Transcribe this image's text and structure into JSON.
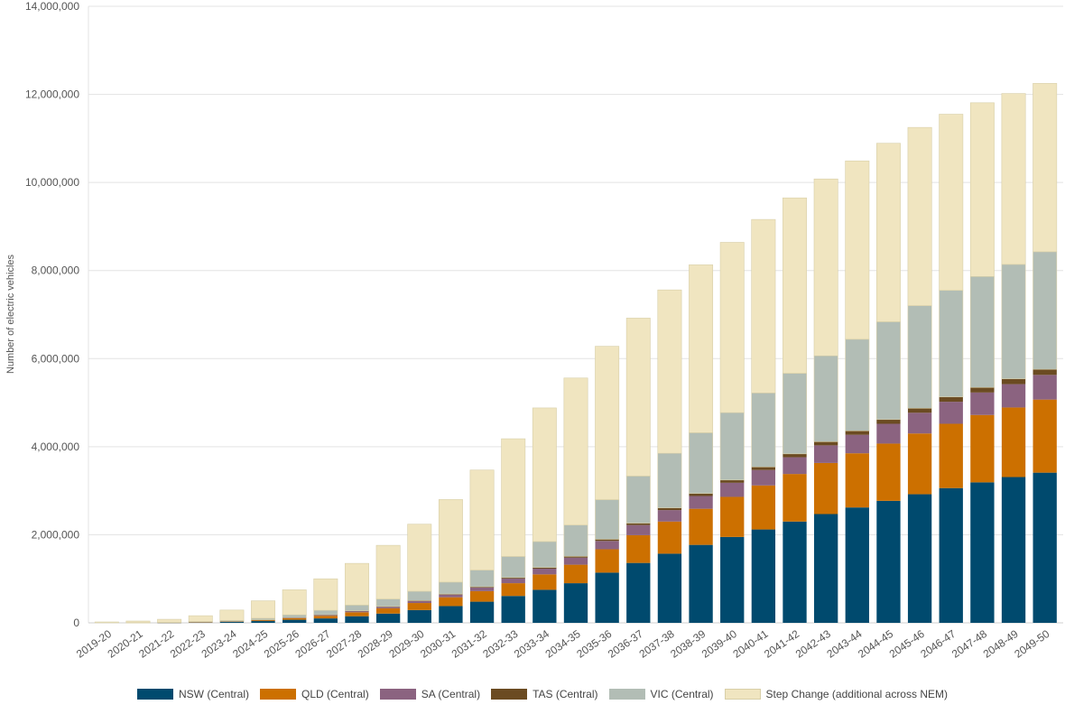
{
  "chart_data": {
    "type": "bar",
    "stacked": true,
    "ylabel": "Number of electric vehicles",
    "ylim": [
      0,
      14000000
    ],
    "yticks": [
      "0",
      "2,000,000",
      "4,000,000",
      "6,000,000",
      "8,000,000",
      "10,000,000",
      "12,000,000",
      "14,000,000"
    ],
    "grid": true,
    "legend_position": "bottom",
    "categories": [
      "2019-20",
      "2020-21",
      "2021-22",
      "2022-23",
      "2023-24",
      "2024-25",
      "2025-26",
      "2026-27",
      "2027-28",
      "2028-29",
      "2029-30",
      "2030-31",
      "2031-32",
      "2032-33",
      "2033-34",
      "2034-35",
      "2035-36",
      "2036-37",
      "2037-38",
      "2038-39",
      "2039-40",
      "2040-41",
      "2041-42",
      "2042-43",
      "2043-44",
      "2044-45",
      "2045-46",
      "2046-47",
      "2047-48",
      "2048-49",
      "2049-50"
    ],
    "series": [
      {
        "name": "NSW (Central)",
        "color": "#004a6e",
        "values": [
          0,
          2000,
          5000,
          10000,
          20000,
          40000,
          70000,
          100000,
          150000,
          210000,
          290000,
          380000,
          480000,
          610000,
          750000,
          900000,
          1140000,
          1360000,
          1570000,
          1770000,
          1950000,
          2120000,
          2300000,
          2470000,
          2620000,
          2770000,
          2920000,
          3060000,
          3190000,
          3310000,
          3410000
        ]
      },
      {
        "name": "QLD (Central)",
        "color": "#cc7000",
        "values": [
          0,
          1000,
          3000,
          5000,
          10000,
          20000,
          35000,
          60000,
          90000,
          120000,
          160000,
          200000,
          240000,
          290000,
          350000,
          420000,
          530000,
          630000,
          730000,
          820000,
          910000,
          1000000,
          1080000,
          1160000,
          1230000,
          1300000,
          1380000,
          1460000,
          1530000,
          1580000,
          1660000
        ]
      },
      {
        "name": "SA (Central)",
        "color": "#8b6380",
        "values": [
          0,
          300,
          800,
          2000,
          4000,
          7000,
          12000,
          18000,
          25000,
          30000,
          45000,
          60000,
          80000,
          105000,
          130000,
          160000,
          190000,
          230000,
          260000,
          290000,
          320000,
          350000,
          380000,
          400000,
          420000,
          450000,
          470000,
          500000,
          510000,
          530000,
          560000
        ]
      },
      {
        "name": "TAS (Central)",
        "color": "#6b4b22",
        "values": [
          0,
          200,
          400,
          700,
          1000,
          2000,
          4000,
          6000,
          8000,
          10000,
          12000,
          15000,
          18000,
          22000,
          26000,
          30000,
          37000,
          43000,
          50000,
          57000,
          63000,
          70000,
          77000,
          83000,
          90000,
          97000,
          103000,
          110000,
          115000,
          120000,
          127000
        ]
      },
      {
        "name": "VIC (Central)",
        "color": "#b2bdb5",
        "values": [
          0,
          2500,
          5000,
          12000,
          20000,
          35000,
          60000,
          100000,
          130000,
          170000,
          210000,
          270000,
          380000,
          480000,
          590000,
          710000,
          900000,
          1070000,
          1240000,
          1380000,
          1530000,
          1680000,
          1830000,
          1950000,
          2080000,
          2220000,
          2330000,
          2420000,
          2520000,
          2600000,
          2670000
        ]
      },
      {
        "name": "Step Change (additional across NEM)",
        "color": "#f0e5c0",
        "values": [
          20000,
          35000,
          66000,
          132000,
          235000,
          396000,
          569000,
          716000,
          947000,
          1220000,
          1523000,
          1875000,
          2272000,
          2673000,
          3034000,
          3340000,
          3483000,
          3587000,
          3710000,
          3813000,
          3867000,
          3940000,
          3983000,
          4017000,
          4050000,
          4053000,
          4047000,
          4000000,
          3945000,
          3880000,
          3823000
        ]
      }
    ]
  }
}
